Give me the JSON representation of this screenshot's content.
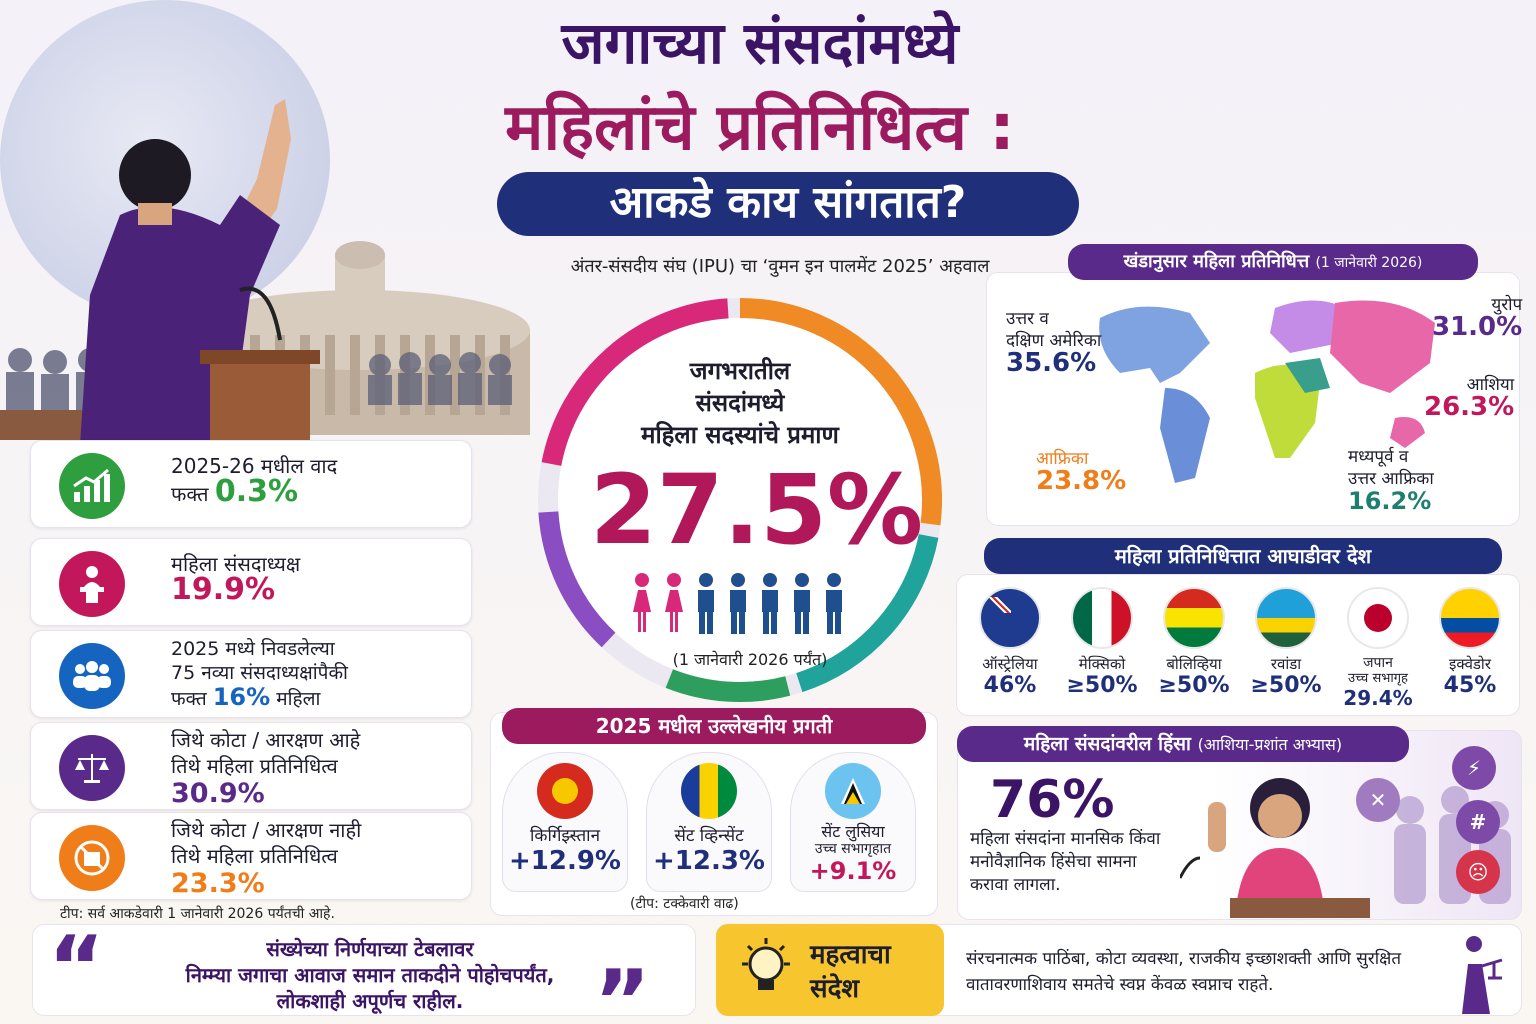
{
  "title": {
    "line1": "जगाच्या संसदांमध्ये",
    "line2": "महिलांचे प्रतिनिधित्व :",
    "line3": "आकडे काय सांगतात?",
    "subtitle": "अंतर-संसदीय संघ (IPU) चा ‘वुमन इन पालमेंट 2025’ अहवाल"
  },
  "center": {
    "label_l1": "जगभरातील",
    "label_l2": "संसदांमध्ये",
    "label_l3": "महिला सदस्यांचे प्रमाण",
    "value": "27.5%",
    "share": 0.275,
    "date": "(1 जानेवारी 2026 पर्यंत)"
  },
  "stats": [
    {
      "l1": "2025-26 मधील वाद",
      "l2": "फक्त",
      "value": "0.3%",
      "color": "#2e9e3e",
      "icon": "growth-chart-icon"
    },
    {
      "l1": "महिला संसदाध्यक्ष",
      "l2": "",
      "value": "19.9%",
      "color": "#c2185b",
      "icon": "speaker-podium-icon"
    },
    {
      "l1": "2025 मध्ये निवडलेल्या",
      "l2": "75 नव्या संसदाध्यक्षांपैकी",
      "l3a": "फक्त",
      "value": "16%",
      "l3b": "महिला",
      "color": "#1565c0",
      "icon": "group-icon"
    },
    {
      "l1": "जिथे कोटा / आरक्षण आहे",
      "l2": "तिथे महिला प्रतिनिधित्व",
      "value": "30.9%",
      "color": "#5a2a8a",
      "icon": "scales-icon"
    },
    {
      "l1": "जिथे कोटा / आरक्षण नाही",
      "l2": "तिथे महिला प्रतिनिधित्व",
      "value": "23.3%",
      "color": "#ef7d1a",
      "icon": "no-quota-icon"
    }
  ],
  "note_all": "टीप: सर्व आकडेवारी 1 जानेवारी 2026 पर्यंतची आहे.",
  "progress": {
    "heading": "2025 मधील उल्लेखनीय प्रगती",
    "items": [
      {
        "name": "किर्गिझ्स्तान",
        "sub": "",
        "value": "+12.9%",
        "color": "#1f2f7a"
      },
      {
        "name": "सेंट व्हिन्सेंट",
        "sub": "",
        "value": "+12.3%",
        "color": "#1f2f7a"
      },
      {
        "name": "सेंट लुसिया",
        "sub": "उच्च सभागृहात",
        "value": "+9.1%",
        "color": "#c2185b"
      }
    ],
    "note": "(टीप: टक्केवारी वाढ)"
  },
  "regions": {
    "heading": "खंडानुसार महिला प्रतिनिधित्त",
    "heading_date": "(1 जानेवारी 2026)",
    "items": [
      {
        "name_l1": "उत्तर व",
        "name_l2": "दक्षिण अमेरिका",
        "value": "35.6%",
        "color": "#1f2f7a"
      },
      {
        "name_l1": "युरोप",
        "name_l2": "",
        "value": "31.0%",
        "color": "#5a2a8a"
      },
      {
        "name_l1": "आशिया",
        "name_l2": "",
        "value": "26.3%",
        "color": "#c2185b"
      },
      {
        "name_l1": "आफ्रिका",
        "name_l2": "",
        "value": "23.8%",
        "color": "#ef7d1a"
      },
      {
        "name_l1": "मध्यपूर्व व",
        "name_l2": "उत्तर आफ्रिका",
        "value": "16.2%",
        "color": "#1e7f6e"
      }
    ]
  },
  "leaders": {
    "heading": "महिला प्रतिनिधित्तात आघाडीवर देश",
    "items": [
      {
        "name": "ऑस्ट्रेलिया",
        "sub": "",
        "value": "46%"
      },
      {
        "name": "मेक्सिको",
        "sub": "",
        "value": "≥50%"
      },
      {
        "name": "बोलिव्हिया",
        "sub": "",
        "value": "≥50%"
      },
      {
        "name": "रवांडा",
        "sub": "",
        "value": "≥50%"
      },
      {
        "name": "जपान",
        "sub": "उच्च सभागृह",
        "value": "29.4%"
      },
      {
        "name": "इक्वेडोर",
        "sub": "",
        "value": "45%"
      }
    ]
  },
  "violence": {
    "heading": "महिला संसदांवरील हिंसा",
    "heading_sub": "(आशिया-प्रशांत अभ्यास)",
    "value": "76%",
    "text": "महिला संसदांना मानसिक किंवा मनोवैज्ञानिक हिंसेचा सामना करावा लागला."
  },
  "quote": {
    "l1": "संख्येच्या निर्णयाच्या टेबलावर",
    "l2": "निम्म्या जगाचा आवाज समान ताकदीने पोहोचपर्यंत,",
    "l3": "लोकशाही अपूर्णच राहील.",
    "open": "“",
    "close": "”"
  },
  "message": {
    "t1": "महत्वाचा",
    "t2": "संदेश",
    "body": "संरचनात्मक पाठिंबा, कोटा व्यवस्था, राजकीय इच्छाशक्ती आणि सुरक्षित वातावरणाशिवाय समतेचे स्वप्न केंवळ स्वप्नाच राहते."
  },
  "colors": {
    "purple": "#3b1466",
    "magenta": "#9b1b5e",
    "navy": "#1f2f7a"
  }
}
